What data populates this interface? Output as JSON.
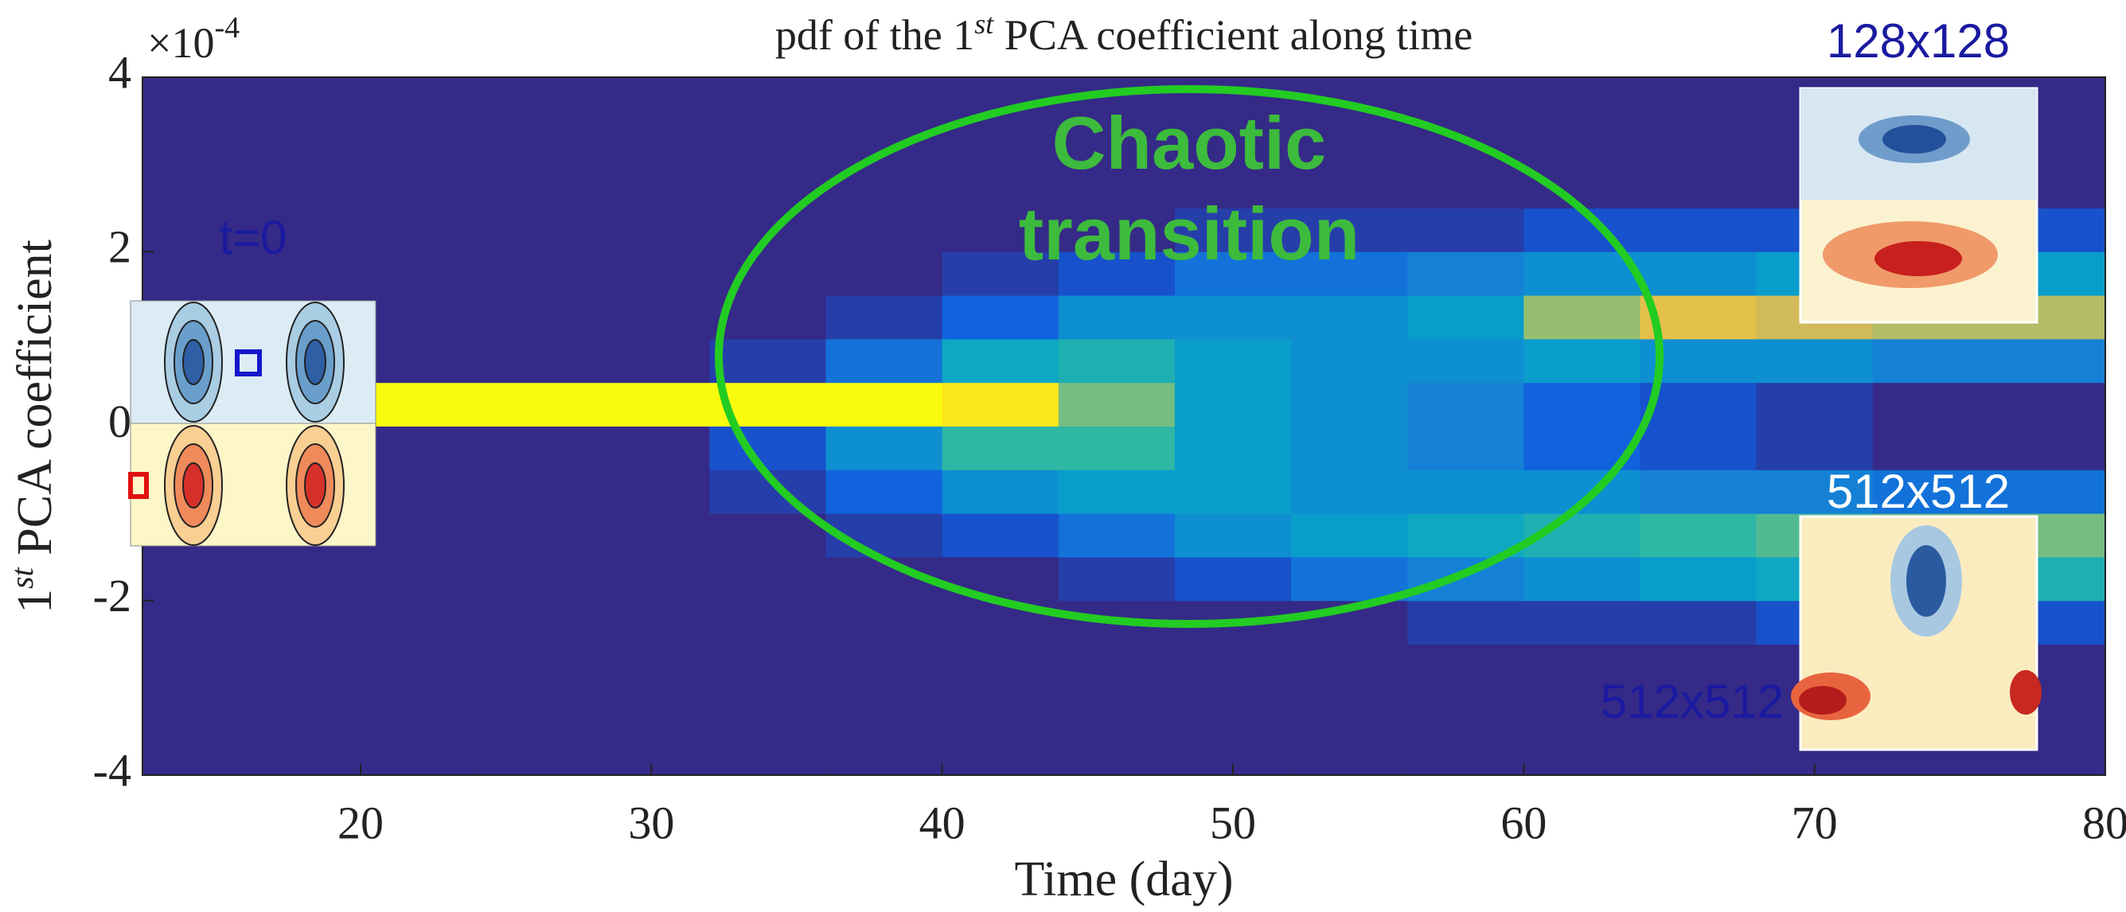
{
  "chart_data": {
    "type": "heatmap",
    "title_parts": [
      "pdf of the 1",
      "st",
      " PCA coefficient along time"
    ],
    "x_label": "Time (day)",
    "y_label_parts": [
      "1",
      "st",
      " PCA coefficient"
    ],
    "y_multiplier": {
      "base": "×10",
      "exponent": "-4"
    },
    "xlim": [
      12.5,
      80
    ],
    "xticks": [
      20,
      30,
      40,
      50,
      60,
      70,
      80
    ],
    "ylim": [
      -4,
      4
    ],
    "yticks": [
      -4,
      -2,
      0,
      2,
      4
    ],
    "x_bins": [
      12,
      16,
      20,
      24,
      28,
      32,
      36,
      40,
      44,
      48,
      52,
      56,
      60,
      64,
      68,
      72,
      76,
      80
    ],
    "y_bins": [
      -4,
      -3.5,
      -3,
      -2.5,
      -2,
      -1.5,
      -1,
      -0.5,
      0,
      0.5,
      1,
      1.5,
      2,
      2.5,
      3,
      3.5,
      4
    ],
    "z": [
      [
        0,
        0,
        0,
        0,
        0,
        0,
        0,
        0,
        0,
        0,
        0,
        0,
        0,
        0,
        0,
        0,
        0
      ],
      [
        0,
        0,
        0,
        0,
        0,
        0,
        0,
        0,
        0,
        0,
        0,
        0,
        0,
        0,
        0,
        0,
        0
      ],
      [
        0,
        0,
        0,
        0,
        0,
        0,
        0,
        0,
        0,
        0,
        0,
        0,
        0,
        0,
        0,
        0,
        0
      ],
      [
        0,
        0,
        0,
        0,
        0,
        0,
        0,
        0,
        0,
        0,
        0,
        0.05,
        0.05,
        0.05,
        0.1,
        0.1,
        0.1
      ],
      [
        0,
        0,
        0,
        0,
        0,
        0,
        0,
        0,
        0.05,
        0.1,
        0.2,
        0.25,
        0.3,
        0.35,
        0.4,
        0.45,
        0.45
      ],
      [
        0,
        0,
        0,
        0,
        0,
        0,
        0.05,
        0.1,
        0.2,
        0.3,
        0.35,
        0.4,
        0.45,
        0.5,
        0.55,
        0.6,
        0.6
      ],
      [
        0,
        0,
        0,
        0,
        0,
        0.05,
        0.15,
        0.3,
        0.35,
        0.35,
        0.3,
        0.3,
        0.3,
        0.25,
        0.25,
        0.2,
        0.2
      ],
      [
        0,
        0,
        0,
        0,
        0,
        0.1,
        0.3,
        0.5,
        0.5,
        0.35,
        0.3,
        0.25,
        0.15,
        0.1,
        0.05,
        0,
        0
      ],
      [
        1,
        1,
        1,
        1,
        1,
        1,
        1,
        0.95,
        0.6,
        0.35,
        0.3,
        0.25,
        0.15,
        0.1,
        0.05,
        0,
        0
      ],
      [
        0,
        0,
        0,
        0,
        0,
        0.05,
        0.2,
        0.4,
        0.45,
        0.35,
        0.3,
        0.3,
        0.35,
        0.3,
        0.3,
        0.25,
        0.25
      ],
      [
        0,
        0,
        0,
        0,
        0,
        0,
        0.05,
        0.15,
        0.3,
        0.3,
        0.3,
        0.35,
        0.65,
        0.8,
        0.75,
        0.7,
        0.7
      ],
      [
        0,
        0,
        0,
        0,
        0,
        0,
        0,
        0.05,
        0.1,
        0.2,
        0.2,
        0.25,
        0.3,
        0.3,
        0.35,
        0.35,
        0.35
      ],
      [
        0,
        0,
        0,
        0,
        0,
        0,
        0,
        0,
        0,
        0.05,
        0.05,
        0.05,
        0.1,
        0.1,
        0.1,
        0.1,
        0.1
      ],
      [
        0,
        0,
        0,
        0,
        0,
        0,
        0,
        0,
        0,
        0,
        0,
        0,
        0,
        0,
        0,
        0,
        0
      ],
      [
        0,
        0,
        0,
        0,
        0,
        0,
        0,
        0,
        0,
        0,
        0,
        0,
        0,
        0,
        0,
        0,
        0
      ],
      [
        0,
        0,
        0,
        0,
        0,
        0,
        0,
        0,
        0,
        0,
        0,
        0,
        0,
        0,
        0,
        0,
        0
      ]
    ],
    "colormap": [
      "#352a87",
      "#0f5cdd",
      "#1481d6",
      "#06a4ca",
      "#2eb7a4",
      "#87bf77",
      "#d1bb59",
      "#fec832",
      "#f9fb0e"
    ],
    "annotations": {
      "chaotic": "Chaotic",
      "transition": "transition",
      "t0": "t=0",
      "inset_top": "128x128",
      "inset_mid": "512x512",
      "inset_bottom": "512x512"
    }
  }
}
